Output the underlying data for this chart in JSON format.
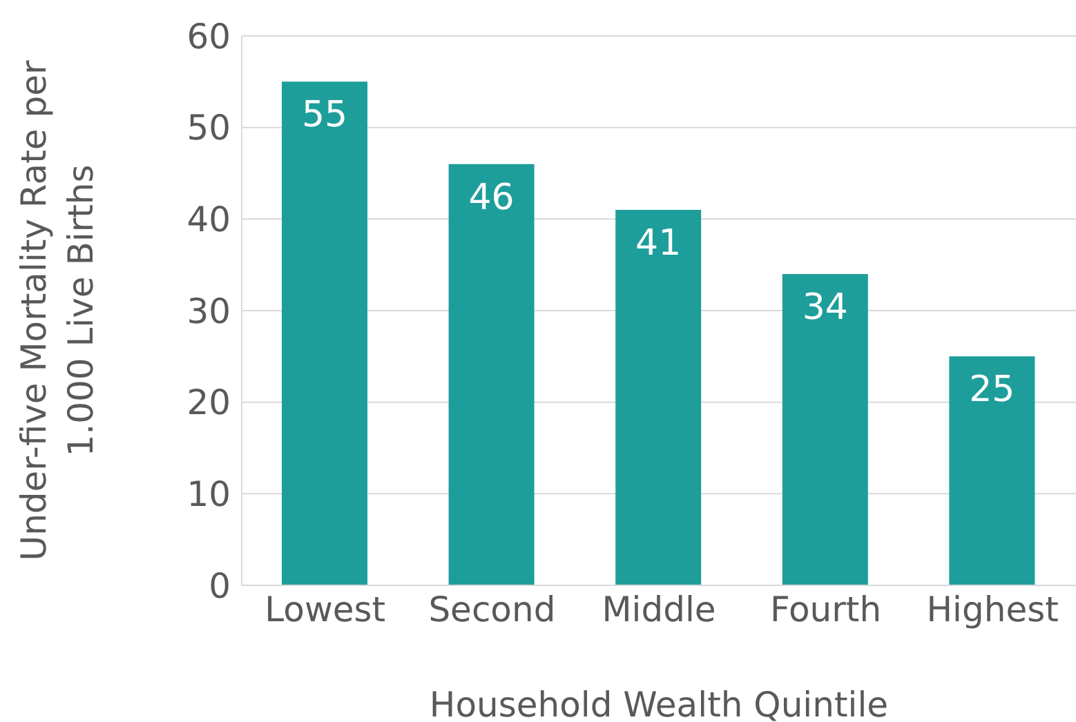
{
  "chart_data": {
    "type": "bar",
    "xlabel": "Household Wealth Quintile",
    "ylabel": "Under-five Mortality Rate per 1.000 Live Births",
    "categories": [
      "Lowest",
      "Second",
      "Middle",
      "Fourth",
      "Highest"
    ],
    "values": [
      55,
      46,
      41,
      34,
      25
    ],
    "color": "#1e9e9a",
    "ylim": [
      0,
      60
    ],
    "yticks": [
      0,
      10,
      20,
      30,
      40,
      50,
      60
    ],
    "grid": "y",
    "data_labels": true
  }
}
